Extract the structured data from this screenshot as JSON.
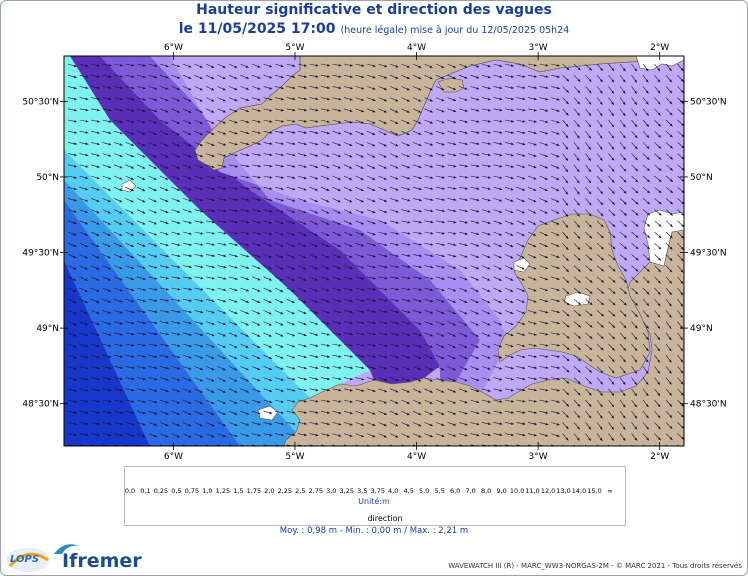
{
  "header": {
    "title": "Hauteur significative et direction des vagues",
    "date_main": "le 11/05/2025 17:00",
    "date_note": "(heure légale) mise à jour du 12/05/2025 05h24"
  },
  "map": {
    "lon_labels": [
      "6°W",
      "5°W",
      "4°W",
      "3°W",
      "2°W"
    ],
    "lat_labels": [
      "50°30'N",
      "50°N",
      "49°30'N",
      "49°N",
      "48°30'N"
    ],
    "lon_values": [
      -6,
      -5,
      -4,
      -3,
      -2
    ],
    "lat_values": [
      50.5,
      50.0,
      49.5,
      49.0,
      48.5
    ],
    "extent": {
      "lon_min": -6.9,
      "lon_max": -1.8,
      "lat_min": 48.22,
      "lat_max": 50.8
    },
    "land_color": "#c9b49a",
    "dominant_wave_direction": "east-southeast"
  },
  "legend": {
    "labels": [
      "0,0",
      "0,1",
      "0,25",
      "0,5",
      "0,75",
      "1,0",
      "1,25",
      "1,5",
      "1,75",
      "2,0",
      "2,25",
      "2,5",
      "2,75",
      "3,0",
      "3,25",
      "3,5",
      "3,75",
      "4,0",
      "4,5",
      "5,0",
      "5,5",
      "6,0",
      "7,0",
      "8,0",
      "9,0",
      "10,0",
      "11,0",
      "12,0",
      "13,0",
      "14,0",
      "15,0",
      "∞"
    ],
    "colors": [
      "#c8b49a",
      "#d4c6b0",
      "#e2d8ec",
      "#c4b4f4",
      "#a78ef0",
      "#7d5ad6",
      "#5a2fb8",
      "#7ff2ee",
      "#55ccf2",
      "#3a9ae8",
      "#2a6ae2",
      "#1838cc",
      "#d6f0a0",
      "#a8ec6a",
      "#62e055",
      "#36cc36",
      "#18b418",
      "#c8f030",
      "#fff230",
      "#ffd020",
      "#ffa818",
      "#ff7a18",
      "#ff4838",
      "#e81838",
      "#b80c20",
      "#8a4418",
      "#7a2a0c",
      "#a80808",
      "#d40c2a",
      "#ff00b4",
      "#c8008c"
    ],
    "unit": "Unité:m",
    "direction_label": "direction",
    "stats": "Moy. : 0,98 m  -  Min. : 0,00 m / Max. : 2,21 m"
  },
  "footer": {
    "credit": "WAVEWATCH III (R) - MARC_WW3-NORGAS-2M - © MARC 2021 - Tous droits réservés",
    "logo_lops": "LOPS",
    "logo_ifremer": "Ifremer"
  }
}
